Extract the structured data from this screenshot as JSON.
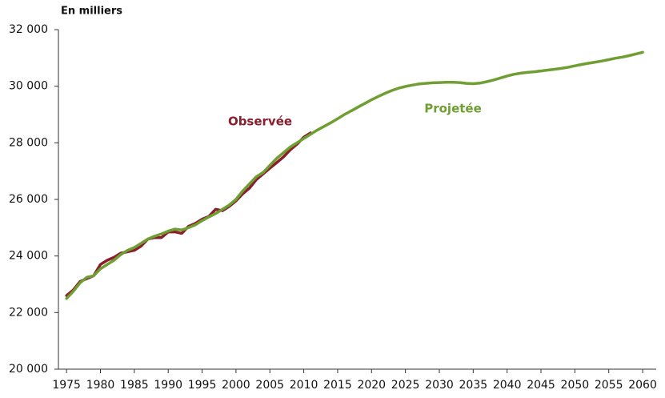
{
  "chart_data": {
    "type": "line",
    "y_label": "En milliers",
    "x": [
      1975,
      1976,
      1977,
      1978,
      1979,
      1980,
      1981,
      1982,
      1983,
      1984,
      1985,
      1986,
      1987,
      1988,
      1989,
      1990,
      1991,
      1992,
      1993,
      1994,
      1995,
      1996,
      1997,
      1998,
      1999,
      2000,
      2001,
      2002,
      2003,
      2004,
      2005,
      2006,
      2007,
      2008,
      2009,
      2010,
      2011,
      2012,
      2013,
      2014,
      2015,
      2016,
      2017,
      2018,
      2019,
      2020,
      2021,
      2022,
      2023,
      2024,
      2025,
      2026,
      2027,
      2028,
      2029,
      2030,
      2031,
      2032,
      2033,
      2034,
      2035,
      2036,
      2037,
      2038,
      2039,
      2040,
      2041,
      2042,
      2043,
      2044,
      2045,
      2046,
      2047,
      2048,
      2049,
      2050,
      2051,
      2052,
      2053,
      2054,
      2055,
      2056,
      2057,
      2058,
      2059,
      2060
    ],
    "series": [
      {
        "name": "Observée",
        "color": "#8b1e2d",
        "values": [
          22600,
          22800,
          23100,
          23200,
          23300,
          23700,
          23850,
          23950,
          24100,
          24150,
          24200,
          24350,
          24600,
          24650,
          24650,
          24850,
          24850,
          24800,
          25050,
          25150,
          25300,
          25400,
          25650,
          25600,
          25750,
          25950,
          26200,
          26400,
          26700,
          26900,
          27100,
          27300,
          27500,
          27750,
          27950,
          28200,
          28350,
          null,
          null,
          null,
          null,
          null,
          null,
          null,
          null,
          null,
          null,
          null,
          null,
          null,
          null,
          null,
          null,
          null,
          null,
          null,
          null,
          null,
          null,
          null,
          null,
          null,
          null,
          null,
          null,
          null,
          null,
          null,
          null,
          null,
          null,
          null,
          null,
          null,
          null,
          null,
          null,
          null,
          null,
          null,
          null,
          null,
          null,
          null,
          null,
          null
        ]
      },
      {
        "name": "Projetée",
        "color": "#6f9f32",
        "values": [
          22500,
          22750,
          23050,
          23250,
          23300,
          23550,
          23700,
          23850,
          24050,
          24200,
          24300,
          24450,
          24600,
          24700,
          24780,
          24880,
          24950,
          24920,
          25000,
          25100,
          25250,
          25380,
          25500,
          25650,
          25800,
          26000,
          26300,
          26550,
          26800,
          26950,
          27200,
          27450,
          27650,
          27850,
          28000,
          28150,
          28300,
          28450,
          28580,
          28710,
          28850,
          29000,
          29130,
          29260,
          29390,
          29520,
          29640,
          29750,
          29850,
          29930,
          29990,
          30040,
          30080,
          30100,
          30120,
          30130,
          30140,
          30140,
          30130,
          30100,
          30090,
          30110,
          30160,
          30220,
          30290,
          30360,
          30420,
          30460,
          30490,
          30510,
          30540,
          30570,
          30600,
          30630,
          30670,
          30720,
          30770,
          30810,
          30850,
          30890,
          30940,
          30990,
          31030,
          31080,
          31140,
          31200
        ]
      }
    ],
    "xlim": [
      1973.8,
      2062
    ],
    "xticks": [
      1975,
      1980,
      1985,
      1990,
      1995,
      2000,
      2005,
      2010,
      2015,
      2020,
      2025,
      2030,
      2035,
      2040,
      2045,
      2050,
      2055,
      2060
    ],
    "ylim": [
      20000,
      32000
    ],
    "yticks": [
      {
        "value": 20000,
        "label": "20 000"
      },
      {
        "value": 22000,
        "label": "22 000"
      },
      {
        "value": 24000,
        "label": "24 000"
      },
      {
        "value": 26000,
        "label": "26 000"
      },
      {
        "value": 28000,
        "label": "28 000"
      },
      {
        "value": 30000,
        "label": "30 000"
      },
      {
        "value": 32000,
        "label": "32 000"
      }
    ],
    "grid": false
  }
}
